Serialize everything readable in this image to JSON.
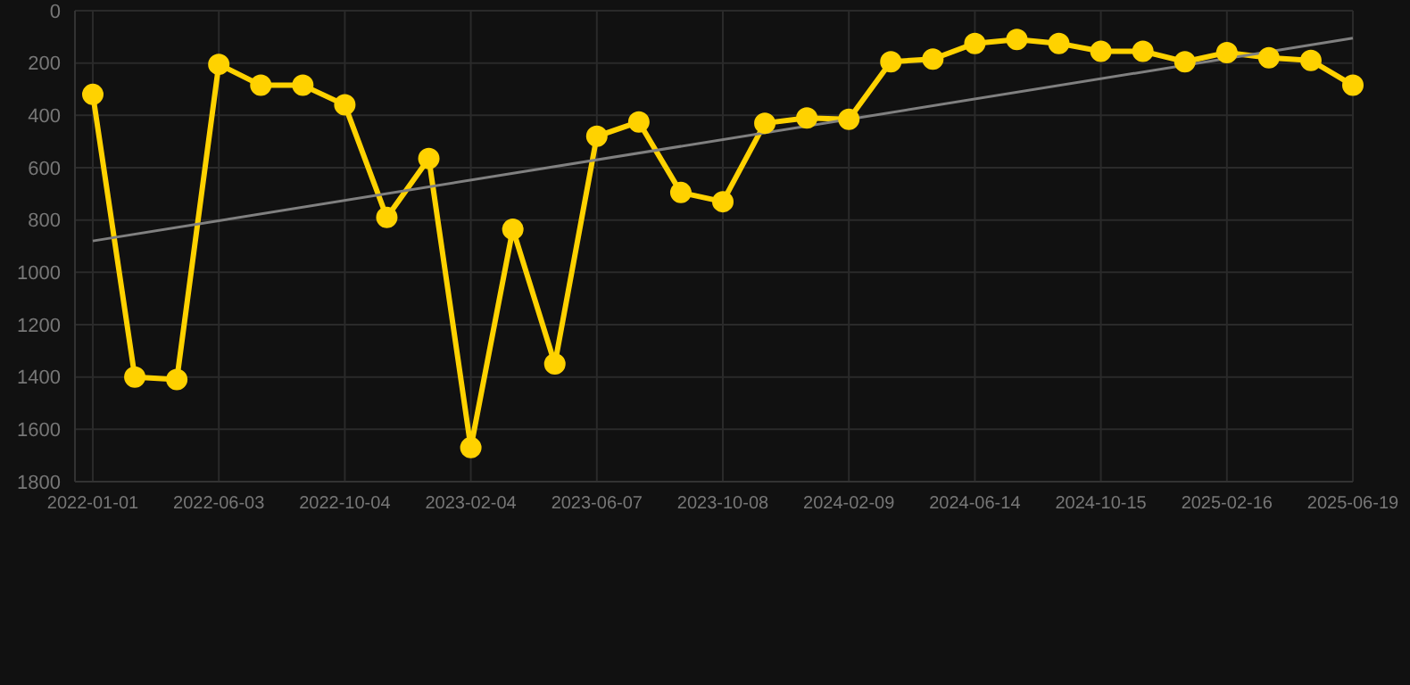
{
  "chart_data": {
    "type": "line",
    "categories": [
      "2022-01-01",
      null,
      null,
      "2022-06-03",
      null,
      null,
      "2022-10-04",
      null,
      null,
      "2023-02-04",
      null,
      null,
      "2023-06-07",
      null,
      null,
      "2023-10-08",
      null,
      null,
      "2024-02-09",
      null,
      null,
      "2024-06-14",
      null,
      null,
      "2024-10-15",
      null,
      null,
      "2025-02-16",
      null,
      null,
      "2025-06-19"
    ],
    "series": [
      {
        "color": "#ffd200",
        "marker": "circle",
        "values": [
          320,
          1400,
          1410,
          205,
          285,
          285,
          360,
          790,
          565,
          1670,
          835,
          1350,
          480,
          425,
          695,
          730,
          430,
          410,
          415,
          195,
          185,
          125,
          110,
          125,
          155,
          155,
          195,
          160,
          180,
          190,
          285
        ]
      },
      {
        "type": "line",
        "color": "#808080",
        "marker": "none",
        "values": [
          880,
          null,
          null,
          null,
          null,
          null,
          null,
          null,
          null,
          null,
          null,
          null,
          null,
          null,
          null,
          null,
          null,
          null,
          null,
          null,
          null,
          null,
          null,
          null,
          null,
          null,
          null,
          null,
          null,
          null,
          105
        ]
      }
    ],
    "ylim": [
      1800,
      0
    ],
    "yticks": [
      0,
      200,
      400,
      600,
      800,
      1000,
      1200,
      1400,
      1600,
      1800
    ],
    "grid": true
  }
}
